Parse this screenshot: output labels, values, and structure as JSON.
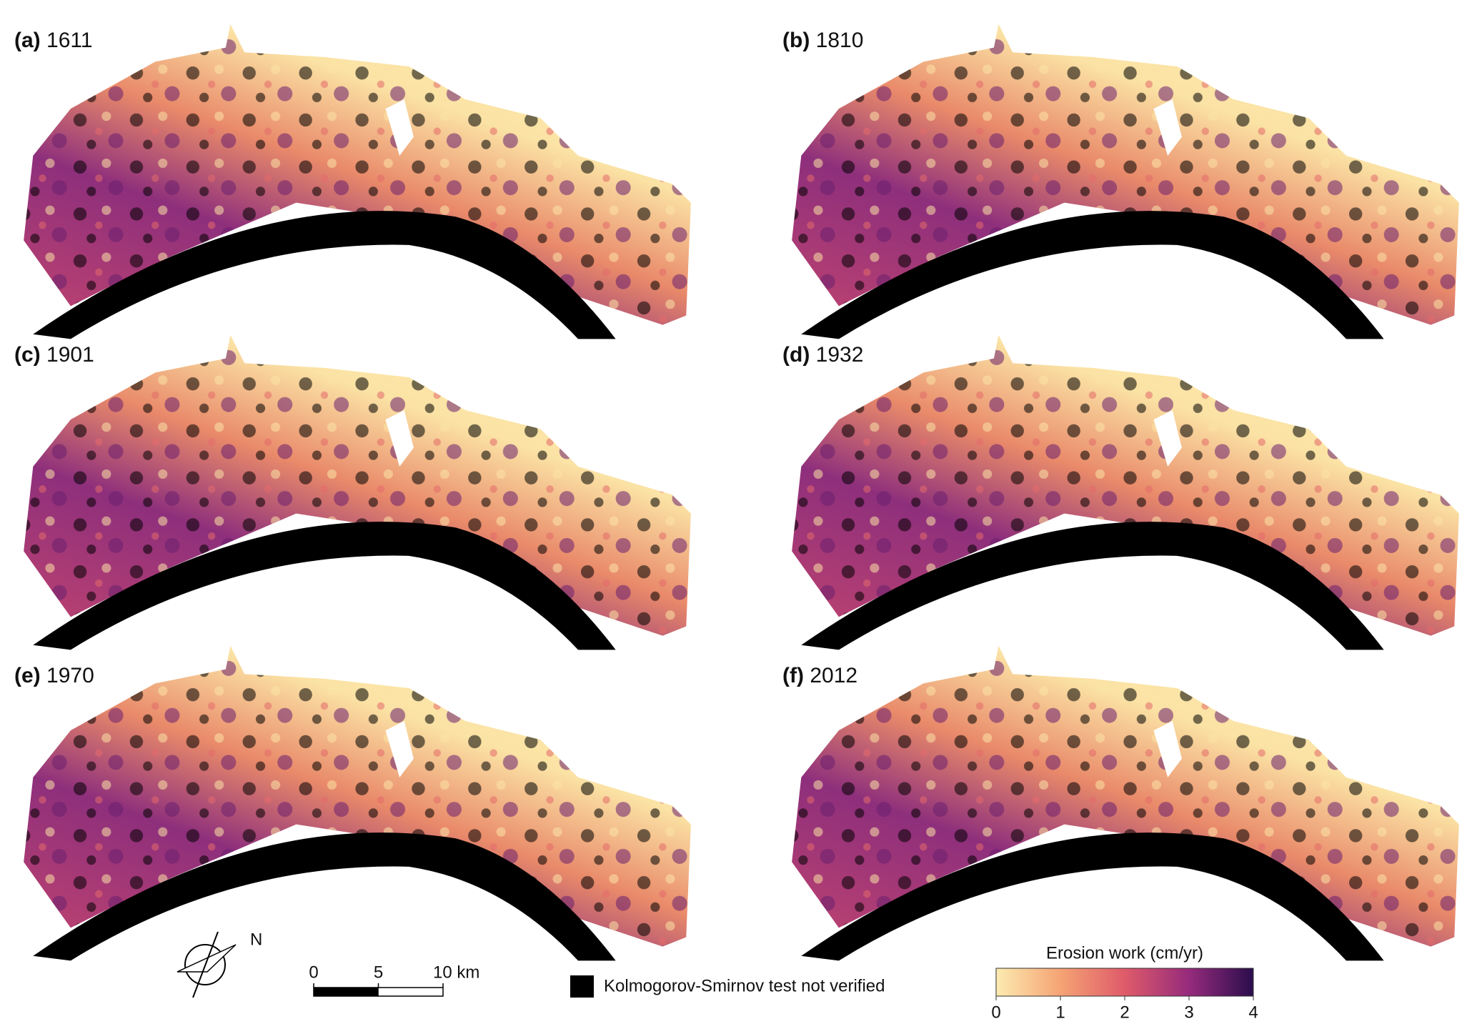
{
  "panels": [
    {
      "label": "(a)",
      "year": "1611"
    },
    {
      "label": "(b)",
      "year": "1810"
    },
    {
      "label": "(c)",
      "year": "1901"
    },
    {
      "label": "(d)",
      "year": "1932"
    },
    {
      "label": "(e)",
      "year": "1970"
    },
    {
      "label": "(f)",
      "year": "2012"
    }
  ],
  "north": "N",
  "scale_bar": {
    "range": [
      0,
      10
    ],
    "ticks": [
      0,
      5,
      {
        "value": 10,
        "label": "10 km"
      }
    ]
  },
  "mask_legend": "Kolmogorov-Smirnov test not verified",
  "colorbar": {
    "title": "Erosion work (cm/yr)",
    "range": [
      0,
      4
    ],
    "ticks": [
      0,
      1,
      2,
      3,
      4
    ]
  }
}
